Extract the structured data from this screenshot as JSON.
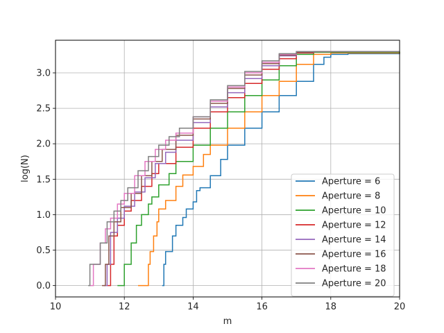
{
  "chart_data": {
    "type": "line",
    "title": "",
    "xlabel": "m",
    "ylabel": "log(N)",
    "xlim": [
      10,
      20
    ],
    "ylim": [
      -0.16,
      3.46
    ],
    "xticks": [
      10,
      12,
      14,
      16,
      18,
      20
    ],
    "yticks": [
      0.0,
      0.5,
      1.0,
      1.5,
      2.0,
      2.5,
      3.0
    ],
    "xtick_labels": [
      "10",
      "12",
      "14",
      "16",
      "18",
      "20"
    ],
    "ytick_labels": [
      "0.0",
      "0.5",
      "1.0",
      "1.5",
      "2.0",
      "2.5",
      "3.0"
    ],
    "grid": true,
    "legend_position": "lower-right",
    "series": [
      {
        "name": "Aperture = 6",
        "color": "#1f77b4",
        "step": true,
        "x": [
          13.1,
          13.15,
          13.2,
          13.4,
          13.5,
          13.7,
          13.8,
          14.0,
          14.1,
          14.2,
          14.5,
          14.8,
          15.0,
          15.5,
          16.0,
          16.5,
          17.0,
          17.5,
          17.8,
          18.0,
          18.5,
          20.0
        ],
        "y": [
          0.0,
          0.3,
          0.48,
          0.7,
          0.85,
          0.96,
          1.08,
          1.18,
          1.34,
          1.38,
          1.55,
          1.78,
          1.98,
          2.22,
          2.45,
          2.68,
          2.88,
          3.12,
          3.22,
          3.26,
          3.27,
          3.28
        ]
      },
      {
        "name": "Aperture = 8",
        "color": "#ff7f0e",
        "step": true,
        "x": [
          12.4,
          12.7,
          12.75,
          12.85,
          12.95,
          13.0,
          13.2,
          13.5,
          13.7,
          14.0,
          14.3,
          14.5,
          15.0,
          15.5,
          16.0,
          16.5,
          17.0,
          17.5,
          18.0,
          20.0
        ],
        "y": [
          0.0,
          0.3,
          0.48,
          0.7,
          0.9,
          1.08,
          1.2,
          1.4,
          1.56,
          1.68,
          1.85,
          1.98,
          2.22,
          2.45,
          2.68,
          2.88,
          3.12,
          3.26,
          3.28,
          3.29
        ]
      },
      {
        "name": "Aperture = 10",
        "color": "#2ca02c",
        "step": true,
        "x": [
          11.8,
          12.0,
          12.2,
          12.35,
          12.5,
          12.7,
          12.8,
          13.0,
          13.3,
          13.5,
          14.0,
          14.5,
          15.0,
          15.5,
          16.0,
          16.5,
          17.0,
          17.5,
          20.0
        ],
        "y": [
          0.0,
          0.3,
          0.6,
          0.85,
          1.0,
          1.15,
          1.25,
          1.42,
          1.58,
          1.75,
          1.98,
          2.22,
          2.45,
          2.68,
          2.9,
          3.1,
          3.26,
          3.29,
          3.3
        ]
      },
      {
        "name": "Aperture = 12",
        "color": "#d62728",
        "step": true,
        "x": [
          11.5,
          11.6,
          11.7,
          11.8,
          12.0,
          12.2,
          12.5,
          12.8,
          13.0,
          13.5,
          14.0,
          14.5,
          15.0,
          15.5,
          16.0,
          16.5,
          17.0,
          17.5,
          20.0
        ],
        "y": [
          0.0,
          0.3,
          0.7,
          0.85,
          1.05,
          1.2,
          1.4,
          1.58,
          1.72,
          1.95,
          2.22,
          2.45,
          2.65,
          2.85,
          3.05,
          3.2,
          3.28,
          3.3,
          3.3
        ]
      },
      {
        "name": "Aperture = 14",
        "color": "#9467bd",
        "step": true,
        "x": [
          11.4,
          11.5,
          11.6,
          11.8,
          12.0,
          12.3,
          12.6,
          12.9,
          13.2,
          13.5,
          14.0,
          14.5,
          15.0,
          15.5,
          16.0,
          16.5,
          17.0,
          17.5,
          20.0
        ],
        "y": [
          0.0,
          0.3,
          0.75,
          0.95,
          1.12,
          1.32,
          1.52,
          1.72,
          1.88,
          2.05,
          2.3,
          2.52,
          2.72,
          2.92,
          3.1,
          3.24,
          3.29,
          3.3,
          3.3
        ]
      },
      {
        "name": "Aperture = 16",
        "color": "#8c564b",
        "step": true,
        "x": [
          11.35,
          11.45,
          11.55,
          11.7,
          11.9,
          12.2,
          12.5,
          12.8,
          13.1,
          13.5,
          14.0,
          14.5,
          15.0,
          15.5,
          16.0,
          16.5,
          17.0,
          17.5,
          20.0
        ],
        "y": [
          0.0,
          0.3,
          0.7,
          0.9,
          1.1,
          1.3,
          1.55,
          1.75,
          1.92,
          2.12,
          2.35,
          2.57,
          2.78,
          2.97,
          3.13,
          3.25,
          3.29,
          3.3,
          3.3
        ]
      },
      {
        "name": "Aperture = 18",
        "color": "#e377c2",
        "step": true,
        "x": [
          11.0,
          11.1,
          11.3,
          11.45,
          11.6,
          11.8,
          12.0,
          12.3,
          12.6,
          12.9,
          13.2,
          13.5,
          14.0,
          14.5,
          15.0,
          15.5,
          16.0,
          16.5,
          17.0,
          20.0
        ],
        "y": [
          0.0,
          0.3,
          0.6,
          0.8,
          0.95,
          1.15,
          1.3,
          1.55,
          1.75,
          1.92,
          2.05,
          2.15,
          2.38,
          2.6,
          2.8,
          3.0,
          3.15,
          3.26,
          3.3,
          3.3
        ]
      },
      {
        "name": "Aperture = 20",
        "color": "#7f7f7f",
        "step": true,
        "x": [
          10.95,
          11.0,
          11.3,
          11.5,
          11.7,
          11.9,
          12.1,
          12.4,
          12.7,
          13.0,
          13.3,
          13.6,
          14.0,
          14.5,
          15.0,
          15.5,
          16.0,
          16.5,
          17.0,
          20.0
        ],
        "y": [
          0.0,
          0.3,
          0.6,
          0.9,
          1.05,
          1.2,
          1.38,
          1.62,
          1.82,
          1.98,
          2.1,
          2.22,
          2.38,
          2.62,
          2.82,
          3.02,
          3.17,
          3.27,
          3.3,
          3.3
        ]
      }
    ]
  }
}
